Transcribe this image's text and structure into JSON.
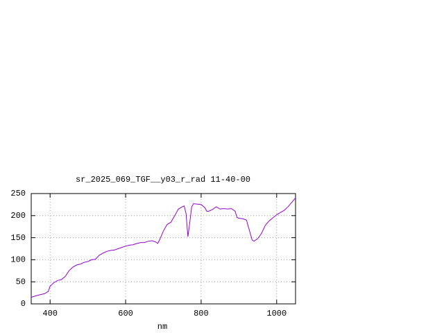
{
  "chart_data": {
    "type": "line",
    "title": "sr_2025_069_TGF__y03_r_rad 11-40-00",
    "xlabel": "nm",
    "x": [
      350,
      370,
      385,
      395,
      400,
      410,
      420,
      430,
      440,
      450,
      460,
      470,
      480,
      490,
      500,
      510,
      520,
      530,
      540,
      550,
      560,
      570,
      580,
      590,
      600,
      610,
      620,
      630,
      640,
      650,
      660,
      670,
      680,
      685,
      690,
      700,
      710,
      720,
      730,
      740,
      750,
      755,
      760,
      765,
      770,
      775,
      780,
      790,
      800,
      810,
      815,
      820,
      830,
      840,
      850,
      860,
      870,
      880,
      890,
      895,
      900,
      910,
      920,
      930,
      935,
      940,
      950,
      960,
      970,
      980,
      990,
      1000,
      1010,
      1020,
      1030,
      1040,
      1050
    ],
    "series": [
      {
        "color": "#9400d3",
        "values": [
          15,
          20,
          23,
          28,
          40,
          48,
          53,
          55,
          62,
          75,
          83,
          88,
          90,
          94,
          96,
          100,
          101,
          110,
          115,
          119,
          121,
          122,
          125,
          128,
          131,
          133,
          134,
          137,
          139,
          139,
          142,
          143,
          140,
          137,
          145,
          165,
          180,
          185,
          200,
          215,
          220,
          222,
          205,
          152,
          185,
          220,
          227,
          226,
          225,
          218,
          210,
          210,
          214,
          220,
          215,
          216,
          215,
          216,
          210,
          196,
          194,
          193,
          190,
          160,
          145,
          142,
          148,
          160,
          178,
          188,
          195,
          202,
          207,
          212,
          220,
          230,
          240
        ]
      }
    ],
    "xlim": [
      350,
      1050
    ],
    "ylim": [
      0,
      250
    ],
    "xticks": [
      400,
      600,
      800,
      1000
    ],
    "yticks": [
      0,
      50,
      100,
      150,
      200,
      250
    ],
    "grid": true
  }
}
